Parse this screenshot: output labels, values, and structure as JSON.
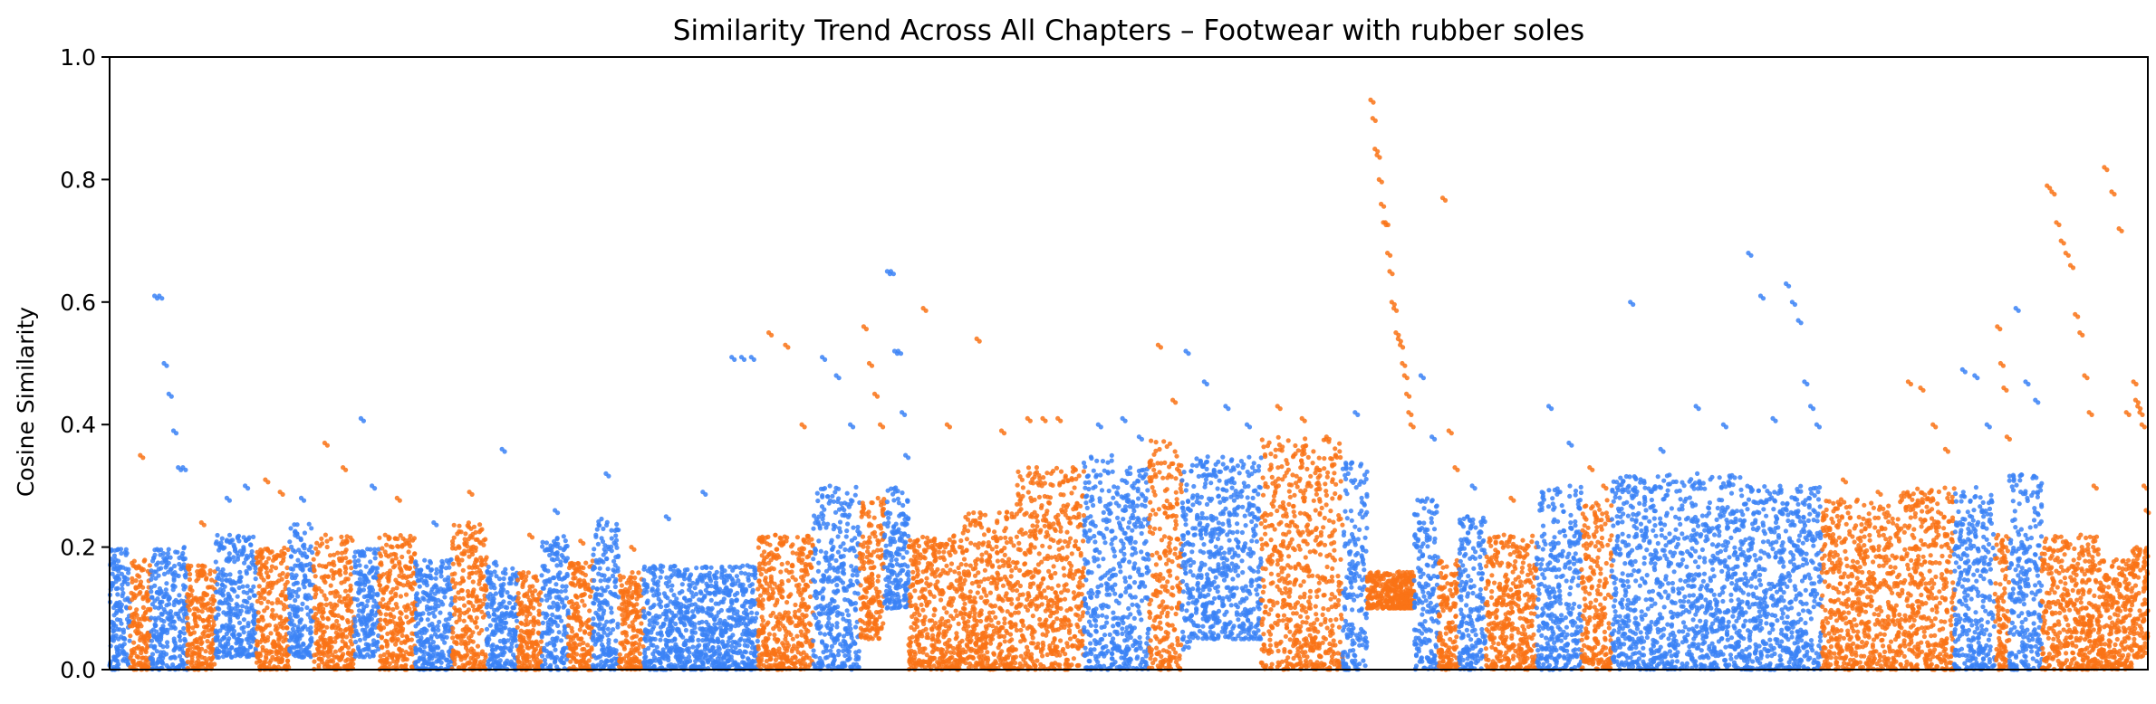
{
  "chart_data": {
    "type": "scatter",
    "title": "Similarity Trend Across All Chapters – Footwear with rubber soles",
    "xlabel": "",
    "ylabel": "Cosine Similarity",
    "ylim": [
      0,
      1
    ],
    "yticks": [
      "0.0",
      "0.2",
      "0.4",
      "0.6",
      "0.8",
      "1.0"
    ],
    "ytick_values": [
      0,
      0.2,
      0.4,
      0.6,
      0.8,
      1.0
    ],
    "x_tick_labels": "none",
    "grid": false,
    "legend": "none",
    "colors": {
      "blue": "#3b82f6",
      "orange": "#f97316"
    },
    "segments": [
      {
        "series": 0,
        "x": [
          0.0,
          0.01
        ],
        "base": [
          0.0,
          0.2
        ],
        "peaks": []
      },
      {
        "series": 1,
        "x": [
          0.01,
          0.02
        ],
        "base": [
          0.0,
          0.18
        ],
        "peaks": [
          0.35
        ]
      },
      {
        "series": 0,
        "x": [
          0.02,
          0.038
        ],
        "base": [
          0.0,
          0.2
        ],
        "peaks": [
          0.61,
          0.61,
          0.5,
          0.45,
          0.39,
          0.33,
          0.33
        ]
      },
      {
        "series": 1,
        "x": [
          0.038,
          0.052
        ],
        "base": [
          0.0,
          0.17
        ],
        "peaks": [
          0.24
        ]
      },
      {
        "series": 0,
        "x": [
          0.052,
          0.072
        ],
        "base": [
          0.02,
          0.22
        ],
        "peaks": [
          0.28,
          0.3
        ]
      },
      {
        "series": 1,
        "x": [
          0.072,
          0.088
        ],
        "base": [
          0.0,
          0.2
        ],
        "peaks": [
          0.31,
          0.29
        ]
      },
      {
        "series": 0,
        "x": [
          0.088,
          0.1
        ],
        "base": [
          0.02,
          0.24
        ],
        "peaks": [
          0.28
        ]
      },
      {
        "series": 1,
        "x": [
          0.1,
          0.12
        ],
        "base": [
          0.0,
          0.22
        ],
        "peaks": [
          0.37,
          0.33
        ]
      },
      {
        "series": 0,
        "x": [
          0.12,
          0.132
        ],
        "base": [
          0.02,
          0.2
        ],
        "peaks": [
          0.41,
          0.3
        ]
      },
      {
        "series": 1,
        "x": [
          0.132,
          0.15
        ],
        "base": [
          0.0,
          0.22
        ],
        "peaks": [
          0.28
        ]
      },
      {
        "series": 0,
        "x": [
          0.15,
          0.168
        ],
        "base": [
          0.0,
          0.18
        ],
        "peaks": [
          0.24
        ]
      },
      {
        "series": 1,
        "x": [
          0.168,
          0.185
        ],
        "base": [
          0.0,
          0.24
        ],
        "peaks": [
          0.29
        ]
      },
      {
        "series": 0,
        "x": [
          0.185,
          0.2
        ],
        "base": [
          0.0,
          0.18
        ],
        "peaks": [
          0.36
        ]
      },
      {
        "series": 1,
        "x": [
          0.2,
          0.212
        ],
        "base": [
          0.0,
          0.16
        ],
        "peaks": [
          0.22
        ]
      },
      {
        "series": 0,
        "x": [
          0.212,
          0.225
        ],
        "base": [
          0.0,
          0.22
        ],
        "peaks": [
          0.26
        ]
      },
      {
        "series": 1,
        "x": [
          0.225,
          0.237
        ],
        "base": [
          0.0,
          0.18
        ],
        "peaks": [
          0.21
        ]
      },
      {
        "series": 0,
        "x": [
          0.237,
          0.25
        ],
        "base": [
          0.0,
          0.25
        ],
        "peaks": [
          0.32
        ]
      },
      {
        "series": 1,
        "x": [
          0.25,
          0.262
        ],
        "base": [
          0.0,
          0.16
        ],
        "peaks": [
          0.2
        ]
      },
      {
        "series": 0,
        "x": [
          0.262,
          0.302
        ],
        "base": [
          0.0,
          0.17
        ],
        "peaks": [
          0.25,
          0.29
        ]
      },
      {
        "series": 0,
        "x": [
          0.302,
          0.318
        ],
        "base": [
          0.0,
          0.17
        ],
        "peaks": [
          0.51,
          0.51,
          0.51
        ]
      },
      {
        "series": 1,
        "x": [
          0.318,
          0.345
        ],
        "base": [
          0.0,
          0.22
        ],
        "peaks": [
          0.55,
          0.53,
          0.4
        ]
      },
      {
        "series": 0,
        "x": [
          0.345,
          0.368
        ],
        "base": [
          0.0,
          0.3
        ],
        "peaks": [
          0.51,
          0.48,
          0.4
        ]
      },
      {
        "series": 1,
        "x": [
          0.368,
          0.38
        ],
        "base": [
          0.05,
          0.28
        ],
        "peaks": [
          0.56,
          0.5,
          0.45,
          0.4
        ]
      },
      {
        "series": 0,
        "x": [
          0.38,
          0.392
        ],
        "base": [
          0.1,
          0.3
        ],
        "peaks": [
          0.65,
          0.65,
          0.52,
          0.52,
          0.42,
          0.35
        ]
      },
      {
        "series": 1,
        "x": [
          0.392,
          0.418
        ],
        "base": [
          0.0,
          0.22
        ],
        "peaks": [
          0.59,
          0.4
        ]
      },
      {
        "series": 1,
        "x": [
          0.418,
          0.445
        ],
        "base": [
          0.0,
          0.26
        ],
        "peaks": [
          0.54,
          0.39
        ]
      },
      {
        "series": 1,
        "x": [
          0.445,
          0.478
        ],
        "base": [
          0.0,
          0.33
        ],
        "peaks": [
          0.41,
          0.41,
          0.41,
          0.33
        ]
      },
      {
        "series": 0,
        "x": [
          0.478,
          0.492
        ],
        "base": [
          0.0,
          0.35
        ],
        "peaks": [
          0.4
        ]
      },
      {
        "series": 0,
        "x": [
          0.492,
          0.51
        ],
        "base": [
          0.0,
          0.33
        ],
        "peaks": [
          0.41,
          0.38
        ]
      },
      {
        "series": 1,
        "x": [
          0.51,
          0.526
        ],
        "base": [
          0.0,
          0.38
        ],
        "peaks": [
          0.53,
          0.44
        ]
      },
      {
        "series": 0,
        "x": [
          0.526,
          0.53
        ],
        "base": [
          0.02,
          0.33
        ],
        "peaks": [
          0.52
        ]
      },
      {
        "series": 0,
        "x": [
          0.53,
          0.565
        ],
        "base": [
          0.05,
          0.35
        ],
        "peaks": [
          0.47,
          0.43,
          0.4
        ]
      },
      {
        "series": 1,
        "x": [
          0.565,
          0.605
        ],
        "base": [
          0.0,
          0.38
        ],
        "peaks": [
          0.43,
          0.41,
          0.38
        ]
      },
      {
        "series": 0,
        "x": [
          0.605,
          0.617
        ],
        "base": [
          0.0,
          0.34
        ],
        "peaks": [
          0.42
        ]
      },
      {
        "series": 1,
        "x": [
          0.617,
          0.64
        ],
        "base": [
          0.1,
          0.16
        ],
        "peaks": [
          0.93,
          0.9,
          0.85,
          0.84,
          0.8,
          0.76,
          0.73,
          0.73,
          0.68,
          0.65,
          0.6,
          0.59,
          0.55,
          0.54,
          0.53,
          0.5,
          0.48,
          0.45,
          0.42,
          0.4
        ]
      },
      {
        "series": 0,
        "x": [
          0.64,
          0.652
        ],
        "base": [
          0.0,
          0.28
        ],
        "peaks": [
          0.48,
          0.38
        ]
      },
      {
        "series": 1,
        "x": [
          0.652,
          0.662
        ],
        "base": [
          0.0,
          0.18
        ],
        "peaks": [
          0.77,
          0.39,
          0.33
        ]
      },
      {
        "series": 0,
        "x": [
          0.662,
          0.675
        ],
        "base": [
          0.0,
          0.25
        ],
        "peaks": [
          0.3
        ]
      },
      {
        "series": 1,
        "x": [
          0.675,
          0.7
        ],
        "base": [
          0.0,
          0.22
        ],
        "peaks": [
          0.28
        ]
      },
      {
        "series": 0,
        "x": [
          0.7,
          0.722
        ],
        "base": [
          0.0,
          0.3
        ],
        "peaks": [
          0.43,
          0.37
        ]
      },
      {
        "series": 1,
        "x": [
          0.722,
          0.737
        ],
        "base": [
          0.0,
          0.28
        ],
        "peaks": [
          0.33,
          0.3
        ]
      },
      {
        "series": 0,
        "x": [
          0.737,
          0.77
        ],
        "base": [
          0.0,
          0.32
        ],
        "peaks": [
          0.6,
          0.36
        ]
      },
      {
        "series": 0,
        "x": [
          0.77,
          0.8
        ],
        "base": [
          0.0,
          0.32
        ],
        "peaks": [
          0.43,
          0.4
        ]
      },
      {
        "series": 0,
        "x": [
          0.8,
          0.82
        ],
        "base": [
          0.0,
          0.3
        ],
        "peaks": [
          0.68,
          0.61,
          0.41
        ]
      },
      {
        "series": 0,
        "x": [
          0.82,
          0.84
        ],
        "base": [
          0.0,
          0.3
        ],
        "peaks": [
          0.63,
          0.6,
          0.57,
          0.47,
          0.43,
          0.4
        ]
      },
      {
        "series": 1,
        "x": [
          0.84,
          0.878
        ],
        "base": [
          0.0,
          0.28
        ],
        "peaks": [
          0.31,
          0.29
        ]
      },
      {
        "series": 1,
        "x": [
          0.878,
          0.905
        ],
        "base": [
          0.0,
          0.3
        ],
        "peaks": [
          0.47,
          0.46,
          0.4,
          0.36
        ]
      },
      {
        "series": 0,
        "x": [
          0.905,
          0.925
        ],
        "base": [
          0.0,
          0.3
        ],
        "peaks": [
          0.49,
          0.48,
          0.4
        ]
      },
      {
        "series": 1,
        "x": [
          0.925,
          0.932
        ],
        "base": [
          0.0,
          0.22
        ],
        "peaks": [
          0.56,
          0.5,
          0.46,
          0.38
        ]
      },
      {
        "series": 0,
        "x": [
          0.932,
          0.948
        ],
        "base": [
          0.0,
          0.32
        ],
        "peaks": [
          0.59,
          0.47,
          0.44
        ]
      },
      {
        "series": 1,
        "x": [
          0.948,
          0.976
        ],
        "base": [
          0.0,
          0.22
        ],
        "peaks": [
          0.79,
          0.78,
          0.73,
          0.7,
          0.68,
          0.66,
          0.58,
          0.55,
          0.48,
          0.42,
          0.3
        ]
      },
      {
        "series": 1,
        "x": [
          0.976,
          0.992
        ],
        "base": [
          0.0,
          0.18
        ],
        "peaks": [
          0.82,
          0.78,
          0.72,
          0.42
        ]
      },
      {
        "series": 1,
        "x": [
          0.992,
          1.0
        ],
        "base": [
          0.02,
          0.2
        ],
        "peaks": [
          0.47,
          0.44,
          0.43,
          0.42,
          0.4,
          0.3,
          0.26
        ]
      }
    ]
  }
}
